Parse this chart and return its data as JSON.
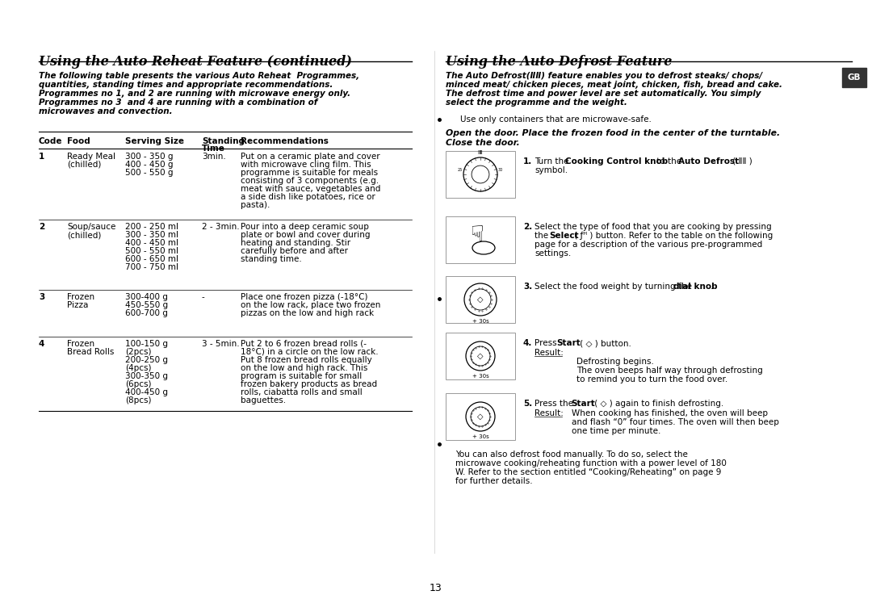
{
  "bg_color": "#ffffff",
  "page_number": "13",
  "left_title": "Using the Auto Reheat Feature (continued)",
  "right_title": "Using the Auto Defrost Feature",
  "left_intro_lines": [
    "The following table presents the various Auto Reheat  Programmes,",
    "quantities, standing times and appropriate recommendations.",
    "Programmes no 1, and 2 are running with microwave energy only.",
    "Programmes no 3  and 4 are running with a combination of",
    "microwaves and convection."
  ],
  "table_rows": [
    {
      "code": "1",
      "food": [
        "Ready Meal",
        "(chilled)"
      ],
      "serving": [
        "300 - 350 g",
        "400 - 450 g",
        "500 - 550 g"
      ],
      "standing": "3min.",
      "recs": [
        "Put on a ceramic plate and cover",
        "with microwave cling film. This",
        "programme is suitable for meals",
        "consisting of 3 components (e.g.",
        "meat with sauce, vegetables and",
        "a side dish like potatoes, rice or",
        "pasta)."
      ]
    },
    {
      "code": "2",
      "food": [
        "Soup/sauce",
        "(chilled)"
      ],
      "serving": [
        "200 - 250 ml",
        "300 - 350 ml",
        "400 - 450 ml",
        "500 - 550 ml",
        "600 - 650 ml",
        "700 - 750 ml"
      ],
      "standing": "2 - 3min.",
      "recs": [
        "Pour into a deep ceramic soup",
        "plate or bowl and cover during",
        "heating and standing. Stir",
        "carefully before and after",
        "standing time."
      ]
    },
    {
      "code": "3",
      "food": [
        "Frozen",
        "Pizza"
      ],
      "serving": [
        "300-400 g",
        "450-550 g",
        "600-700 g"
      ],
      "standing": "-",
      "recs": [
        "Place one frozen pizza (-18°C)",
        "on the low rack, place two frozen",
        "pizzas on the low and high rack"
      ]
    },
    {
      "code": "4",
      "food": [
        "Frozen",
        "Bread Rolls"
      ],
      "serving": [
        "100-150 g",
        "(2pcs)",
        "200-250 g",
        "(4pcs)",
        "300-350 g",
        "(6pcs)",
        "400-450 g",
        "(8pcs)"
      ],
      "standing": "3 - 5min.",
      "recs": [
        "Put 2 to 6 frozen bread rolls (-",
        "18°C) in a circle on the low rack.",
        "Put 8 frozen bread rolls equally",
        "on the low and high rack. This",
        "program is suitable for small",
        "frozen bakery products as bread",
        "rolls, ciabatta rolls and small",
        "baguettes."
      ]
    }
  ],
  "right_intro_lines": [
    "The Auto Defrost(ⅡⅡ) feature enables you to defrost steaks/ chops/",
    "minced meat/ chicken pieces, meat joint, chicken, fish, bread and cake.",
    "The defrost time and power level are set automatically. You simply",
    "select the programme and the weight."
  ],
  "right_note": "Use only containers that are microwave-safe.",
  "right_bold_note": [
    "Open the door. Place the frozen food in the center of the turntable.",
    "Close the door."
  ],
  "right_footer_lines": [
    "You can also defrost food manually. To do so, select the",
    "microwave cooking/reheating function with a power level of 180",
    "W. Refer to the section entitled “Cooking/Reheating” on page 9",
    "for further details."
  ],
  "gb_label": "GB"
}
